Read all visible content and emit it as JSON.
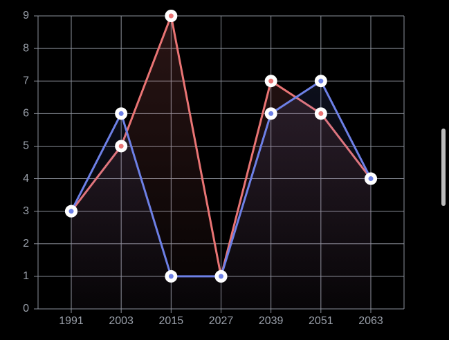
{
  "chart_data": {
    "type": "line",
    "categories": [
      "1991",
      "2003",
      "2015",
      "2027",
      "2039",
      "2051",
      "2063"
    ],
    "series": [
      {
        "color": "#e97474",
        "values": [
          3,
          5,
          9,
          1,
          7,
          6,
          4
        ]
      },
      {
        "color": "#6d80e6",
        "values": [
          3,
          6,
          1,
          1,
          6,
          7,
          4
        ]
      }
    ],
    "ylim": [
      0,
      9
    ],
    "yticks": [
      0,
      1,
      2,
      3,
      4,
      5,
      6,
      7,
      8,
      9
    ],
    "grid": true
  }
}
